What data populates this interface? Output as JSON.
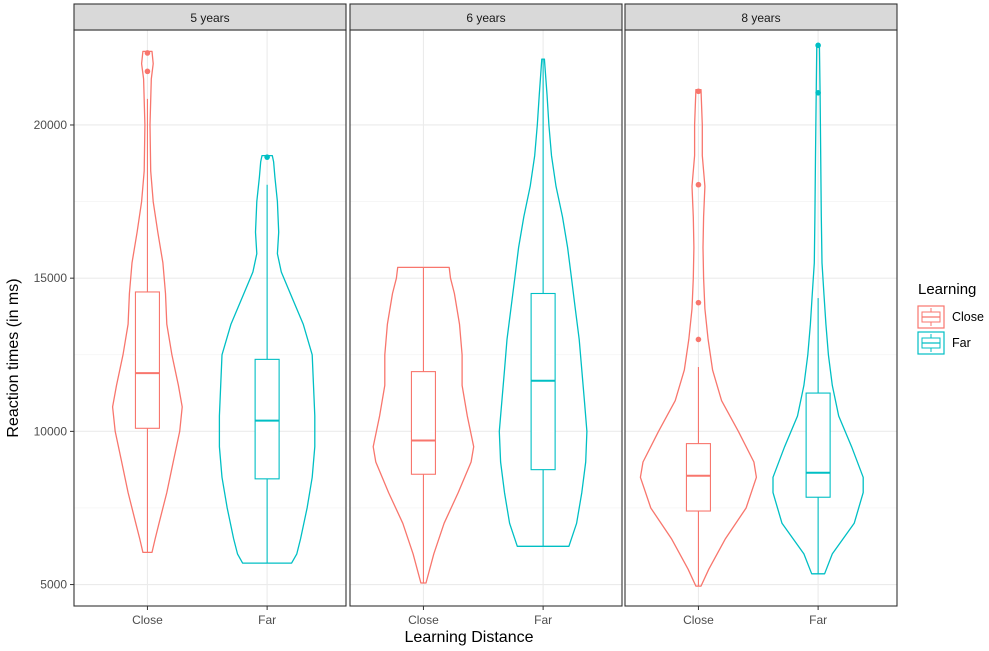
{
  "chart_data": {
    "type": "violin",
    "xlabel": "Learning Distance",
    "ylabel": "Reaction times (in ms)",
    "y_ticks": [
      5000,
      10000,
      15000,
      20000
    ],
    "ylim": [
      4300,
      23100
    ],
    "categories": [
      "Close",
      "Far"
    ],
    "grid": true,
    "legend": {
      "title": "Learning",
      "position": "right",
      "entries": [
        {
          "name": "Close",
          "color": "#f8766d"
        },
        {
          "name": "Far",
          "color": "#00bfc4"
        }
      ]
    },
    "panels": [
      {
        "strip": "5 years",
        "groups": [
          {
            "category": "Close",
            "color": "#f8766d",
            "min": 6050,
            "q1": 10100,
            "median": 11900,
            "q3": 14550,
            "whisker_high": 20850,
            "max": 22400,
            "outliers": [
              22350,
              21750
            ],
            "density": [
              [
                6050,
                0.035
              ],
              [
                6500,
                0.06
              ],
              [
                7000,
                0.09
              ],
              [
                8000,
                0.15
              ],
              [
                9000,
                0.2
              ],
              [
                10000,
                0.25
              ],
              [
                10800,
                0.27
              ],
              [
                11500,
                0.24
              ],
              [
                12500,
                0.19
              ],
              [
                13500,
                0.15
              ],
              [
                14500,
                0.14
              ],
              [
                15500,
                0.12
              ],
              [
                16500,
                0.08
              ],
              [
                17500,
                0.045
              ],
              [
                18500,
                0.025
              ],
              [
                20000,
                0.02
              ],
              [
                21500,
                0.03
              ],
              [
                22000,
                0.045
              ],
              [
                22400,
                0.035
              ]
            ]
          },
          {
            "category": "Far",
            "color": "#00bfc4",
            "min": 5700,
            "q1": 8450,
            "median": 10350,
            "q3": 12350,
            "whisker_high": 18050,
            "max": 19000,
            "outliers": [
              18950
            ],
            "density": [
              [
                5700,
                0.19
              ],
              [
                6000,
                0.23
              ],
              [
                6500,
                0.26
              ],
              [
                7500,
                0.31
              ],
              [
                8500,
                0.35
              ],
              [
                9500,
                0.37
              ],
              [
                10500,
                0.37
              ],
              [
                11500,
                0.36
              ],
              [
                12500,
                0.35
              ],
              [
                13500,
                0.28
              ],
              [
                14500,
                0.18
              ],
              [
                15200,
                0.11
              ],
              [
                15800,
                0.08
              ],
              [
                16500,
                0.09
              ],
              [
                17500,
                0.08
              ],
              [
                18300,
                0.06
              ],
              [
                18800,
                0.05
              ],
              [
                19000,
                0.04
              ]
            ]
          }
        ]
      },
      {
        "strip": "6 years",
        "groups": [
          {
            "category": "Close",
            "color": "#f8766d",
            "min": 5050,
            "q1": 8600,
            "median": 9700,
            "q3": 11950,
            "whisker_high": 15350,
            "max": 15350,
            "outliers": [],
            "density": [
              [
                5050,
                0.02
              ],
              [
                6000,
                0.08
              ],
              [
                7000,
                0.16
              ],
              [
                8000,
                0.27
              ],
              [
                9000,
                0.37
              ],
              [
                9500,
                0.39
              ],
              [
                10500,
                0.34
              ],
              [
                11500,
                0.3
              ],
              [
                12500,
                0.3
              ],
              [
                13500,
                0.28
              ],
              [
                14500,
                0.24
              ],
              [
                15000,
                0.21
              ],
              [
                15350,
                0.2
              ]
            ]
          },
          {
            "category": "Far",
            "color": "#00bfc4",
            "min": 6250,
            "q1": 8750,
            "median": 11650,
            "q3": 14500,
            "whisker_high": 22150,
            "max": 22150,
            "outliers": [],
            "density": [
              [
                6250,
                0.2
              ],
              [
                7000,
                0.26
              ],
              [
                8000,
                0.3
              ],
              [
                9000,
                0.33
              ],
              [
                10000,
                0.34
              ],
              [
                11000,
                0.32
              ],
              [
                12000,
                0.3
              ],
              [
                13000,
                0.28
              ],
              [
                14000,
                0.25
              ],
              [
                15000,
                0.22
              ],
              [
                16000,
                0.19
              ],
              [
                17000,
                0.15
              ],
              [
                18000,
                0.1
              ],
              [
                19000,
                0.065
              ],
              [
                20000,
                0.045
              ],
              [
                21000,
                0.03
              ],
              [
                22150,
                0.01
              ]
            ]
          }
        ]
      },
      {
        "strip": "8 years",
        "groups": [
          {
            "category": "Close",
            "color": "#f8766d",
            "min": 4950,
            "q1": 7400,
            "median": 8550,
            "q3": 9600,
            "whisker_high": 12100,
            "max": 21150,
            "outliers": [
              21100,
              18050,
              14200,
              13000
            ],
            "density": [
              [
                4950,
                0.02
              ],
              [
                5500,
                0.08
              ],
              [
                6500,
                0.21
              ],
              [
                7500,
                0.37
              ],
              [
                8500,
                0.45
              ],
              [
                9000,
                0.43
              ],
              [
                10000,
                0.31
              ],
              [
                11000,
                0.18
              ],
              [
                12000,
                0.11
              ],
              [
                13000,
                0.075
              ],
              [
                14000,
                0.05
              ],
              [
                15000,
                0.04
              ],
              [
                16000,
                0.035
              ],
              [
                17000,
                0.04
              ],
              [
                18000,
                0.05
              ],
              [
                19000,
                0.03
              ],
              [
                20000,
                0.03
              ],
              [
                21150,
                0.02
              ]
            ]
          },
          {
            "category": "Far",
            "color": "#00bfc4",
            "min": 5350,
            "q1": 7850,
            "median": 8650,
            "q3": 11250,
            "whisker_high": 14350,
            "max": 22650,
            "outliers": [
              22600,
              21050
            ],
            "density": [
              [
                5350,
                0.05
              ],
              [
                6000,
                0.11
              ],
              [
                7000,
                0.28
              ],
              [
                8000,
                0.35
              ],
              [
                8500,
                0.35
              ],
              [
                9500,
                0.26
              ],
              [
                10500,
                0.16
              ],
              [
                11500,
                0.11
              ],
              [
                12500,
                0.08
              ],
              [
                13500,
                0.06
              ],
              [
                14500,
                0.045
              ],
              [
                15500,
                0.03
              ],
              [
                17000,
                0.025
              ],
              [
                19000,
                0.02
              ],
              [
                21000,
                0.015
              ],
              [
                22650,
                0.01
              ]
            ]
          }
        ]
      }
    ]
  }
}
